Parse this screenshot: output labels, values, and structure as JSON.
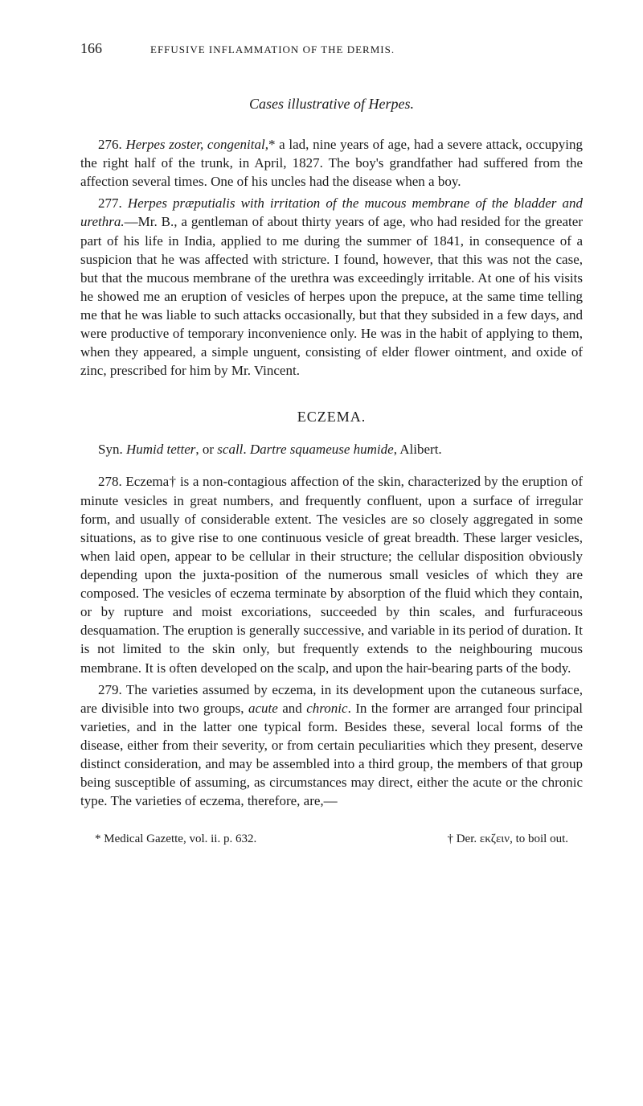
{
  "page_number": "166",
  "running_head": "EFFUSIVE INFLAMMATION OF THE DERMIS.",
  "section_title": "Cases illustrative of Herpes.",
  "para_276_num": "276. ",
  "para_276_lead_italic": "Herpes zoster, congenital,",
  "para_276_rest": "* a lad, nine years of age, had a severe attack, occupying the right half of the trunk, in April, 1827. The boy's grandfather had suffered from the affection several times. One of his uncles had the disease when a boy.",
  "para_277_num": "277. ",
  "para_277_lead_italic": "Herpes præputialis with irritation of the mucous membrane of the bladder and urethra.",
  "para_277_rest": "—Mr. B., a gentleman of about thirty years of age, who had resided for the greater part of his life in India, applied to me during the summer of 1841, in consequence of a suspicion that he was affected with stricture. I found, however, that this was not the case, but that the mucous membrane of the urethra was exceedingly irritable. At one of his visits he showed me an eruption of vesicles of herpes upon the prepuce, at the same time telling me that he was liable to such attacks occasionally, but that they subsided in a few days, and were productive of temporary inconvenience only. He was in the habit of applying to them, when they appeared, a simple unguent, consisting of elder flower ointment, and oxide of zinc, prescribed for him by Mr. Vincent.",
  "chapter_heading": "ECZEMA.",
  "syn_prefix": "Syn. ",
  "syn_italic1": "Humid tetter",
  "syn_mid1": ", or ",
  "syn_italic2": "scall",
  "syn_mid2": ". ",
  "syn_italic3": "Dartre squameuse humide",
  "syn_end": ", Alibert.",
  "para_278_num": "278. ",
  "para_278_text": "Eczema† is a non-contagious affection of the skin, characterized by the eruption of minute vesicles in great numbers, and frequently confluent, upon a surface of irregular form, and usually of considerable extent. The vesicles are so closely aggregated in some situations, as to give rise to one continuous vesicle of great breadth. These larger vesicles, when laid open, appear to be cellular in their structure; the cellular disposition obviously depending upon the juxta-position of the numerous small vesicles of which they are composed. The vesicles of eczema terminate by absorption of the fluid which they contain, or by rupture and moist excoriations, succeeded by thin scales, and furfuraceous desquamation. The eruption is generally successive, and variable in its period of duration. It is not limited to the skin only, but frequently extends to the neighbouring mucous membrane. It is often developed on the scalp, and upon the hair-bearing parts of the body.",
  "para_279_num": "279. ",
  "para_279_a": "The varieties assumed by eczema, in its development upon the cutaneous surface, are divisible into two groups, ",
  "para_279_i1": "acute",
  "para_279_b": " and ",
  "para_279_i2": "chronic",
  "para_279_c": ". In the former are arranged four principal varieties, and in the latter one typical form. Besides these, several local forms of the disease, either from their severity, or from certain peculiarities which they present, deserve distinct consideration, and may be assembled into a third group, the members of that group being susceptible of assuming, as circumstances may direct, either the acute or the chronic type. The varieties of eczema, therefore, are,—",
  "footnote_left": "* Medical Gazette, vol. ii. p. 632.",
  "footnote_right_a": "† Der. ",
  "footnote_right_greek": "εκζειν",
  "footnote_right_b": ", to boil out."
}
